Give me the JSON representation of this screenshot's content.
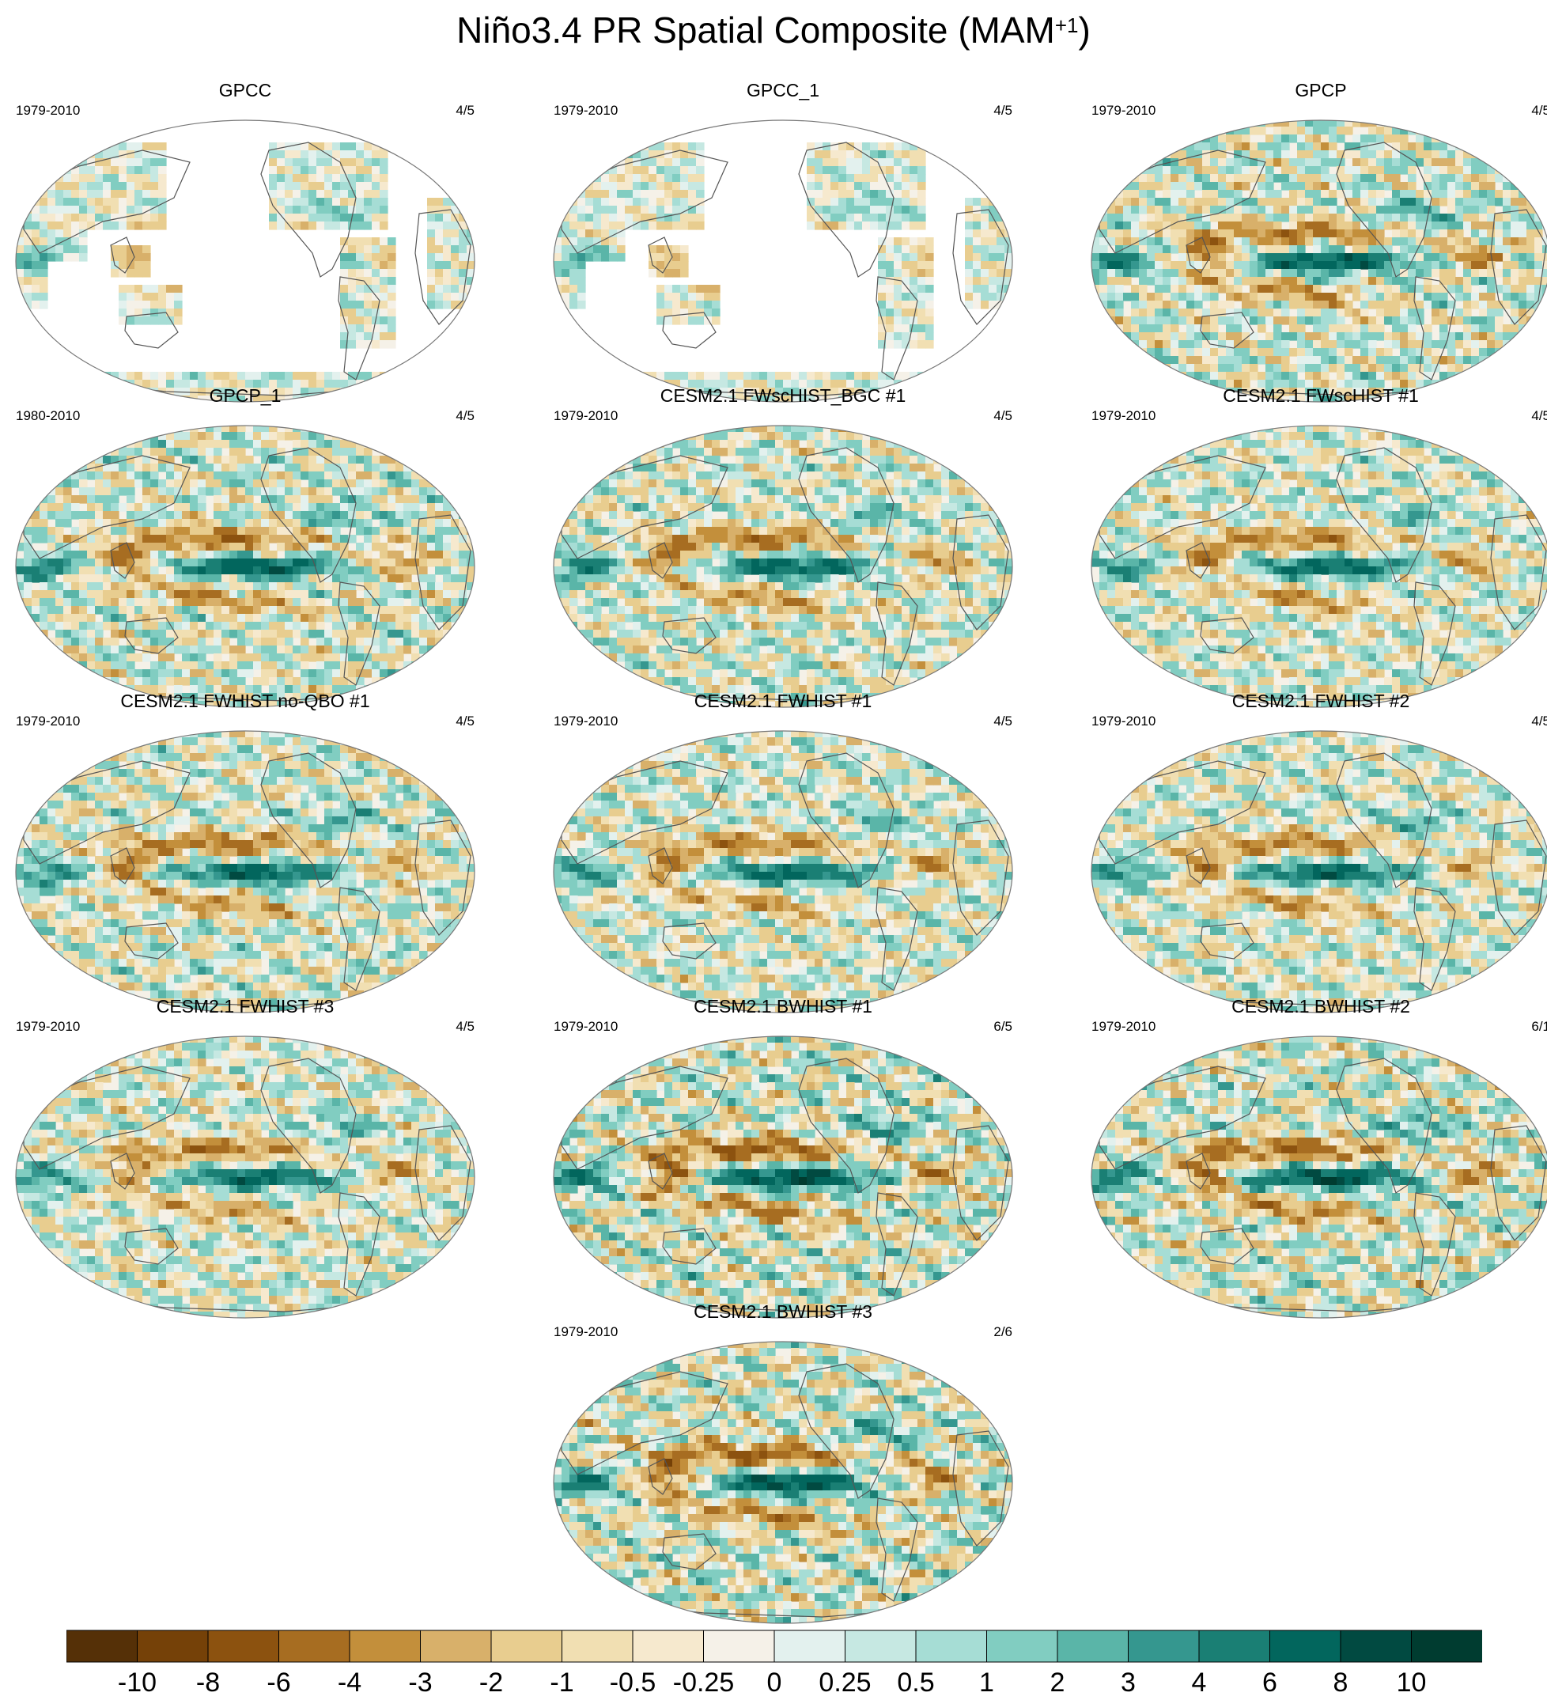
{
  "title": {
    "main": "Niño3.4 PR Spatial Composite (MAM",
    "superscript": "+1",
    "close": ")"
  },
  "chart_data": {
    "type": "heatmap",
    "projection": "Robinson (Pacific-centered)",
    "variable": "PR",
    "season": "MAM+1",
    "panels": [
      {
        "name": "GPCC",
        "period": "1979-2010",
        "count": "4/5",
        "pattern": "land-only",
        "amplitude": 0.5
      },
      {
        "name": "GPCC_1",
        "period": "1979-2010",
        "count": "4/5",
        "pattern": "land-only",
        "amplitude": 0.5
      },
      {
        "name": "GPCP",
        "period": "1979-2010",
        "count": "4/5",
        "pattern": "full",
        "amplitude": 0.85
      },
      {
        "name": "GPCP_1",
        "period": "1980-2010",
        "count": "4/5",
        "pattern": "full",
        "amplitude": 0.85
      },
      {
        "name": "CESM2.1 FWscHIST_BGC #1",
        "period": "1979-2010",
        "count": "4/5",
        "pattern": "full",
        "amplitude": 0.8
      },
      {
        "name": "CESM2.1 FWscHIST #1",
        "period": "1979-2010",
        "count": "4/5",
        "pattern": "full",
        "amplitude": 0.75
      },
      {
        "name": "CESM2.1 FWHIST no-QBO #1",
        "period": "1979-2010",
        "count": "4/5",
        "pattern": "full",
        "amplitude": 0.8
      },
      {
        "name": "CESM2.1 FWHIST #1",
        "period": "1979-2010",
        "count": "4/5",
        "pattern": "full",
        "amplitude": 0.75
      },
      {
        "name": "CESM2.1 FWHIST #2",
        "period": "1979-2010",
        "count": "4/5",
        "pattern": "full",
        "amplitude": 0.75
      },
      {
        "name": "CESM2.1 FWHIST #3",
        "period": "1979-2010",
        "count": "4/5",
        "pattern": "full",
        "amplitude": 0.75
      },
      {
        "name": "CESM2.1 BWHIST #1",
        "period": "1979-2010",
        "count": "6/5",
        "pattern": "full",
        "amplitude": 1.0
      },
      {
        "name": "CESM2.1 BWHIST #2",
        "period": "1979-2010",
        "count": "6/1",
        "pattern": "full",
        "amplitude": 0.95
      },
      {
        "name": "CESM2.1 BWHIST #3",
        "period": "1979-2010",
        "count": "2/6",
        "pattern": "full",
        "amplitude": 1.0
      }
    ],
    "colorbar": {
      "levels": [
        "-10",
        "-8",
        "-6",
        "-4",
        "-3",
        "-2",
        "-1",
        "-0.5",
        "-0.25",
        "0",
        "0.25",
        "0.5",
        "1",
        "2",
        "3",
        "4",
        "6",
        "8",
        "10"
      ],
      "colors": [
        "#553007",
        "#754108",
        "#8c520f",
        "#a76d21",
        "#c38f3b",
        "#d8b06a",
        "#e8cd8f",
        "#f1dfb2",
        "#f6e9ce",
        "#f5f1e8",
        "#e3f1ee",
        "#c6e8e2",
        "#a6ddd5",
        "#81cdc1",
        "#5ab5a8",
        "#35978f",
        "#1a7f74",
        "#02665d",
        "#014a41",
        "#003c30"
      ]
    }
  }
}
